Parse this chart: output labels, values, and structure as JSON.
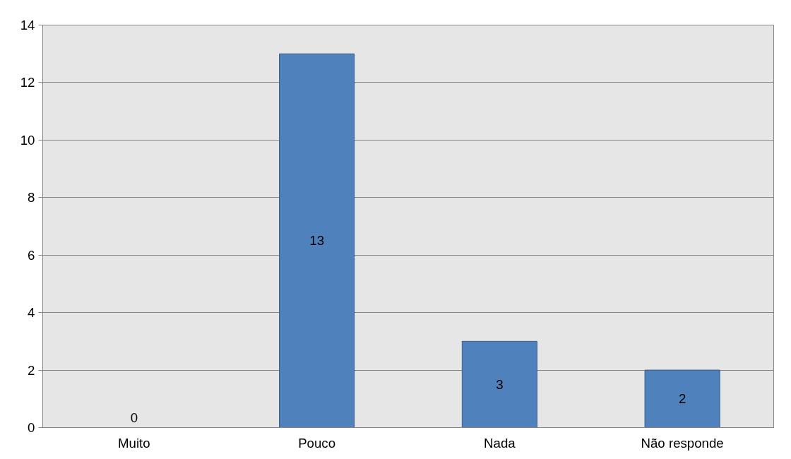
{
  "chart_data": {
    "type": "bar",
    "categories": [
      "Muito",
      "Pouco",
      "Nada",
      "Não responde"
    ],
    "values": [
      0,
      13,
      3,
      2
    ],
    "color": "#4f81bd",
    "ylim": [
      0,
      14
    ],
    "yticks": [
      0,
      2,
      4,
      6,
      8,
      10,
      12,
      14
    ],
    "grid": "y",
    "data_labels": true
  }
}
